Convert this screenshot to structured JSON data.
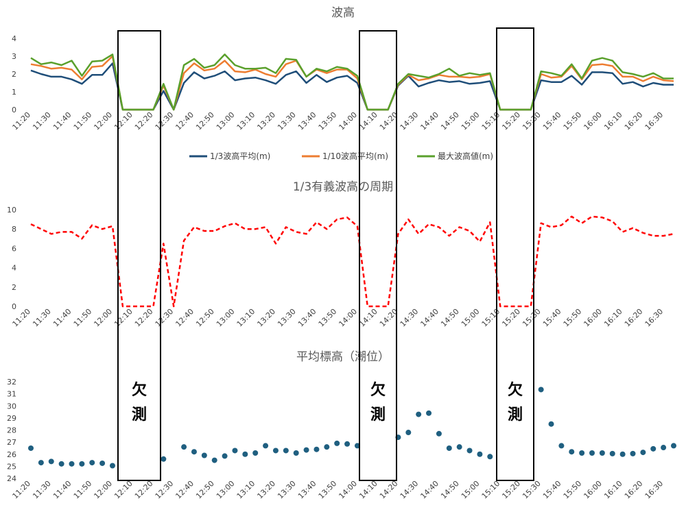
{
  "chart_data": [
    {
      "type": "line",
      "title": "波高",
      "x": [
        "11:20",
        "11:25",
        "11:30",
        "11:35",
        "11:40",
        "11:45",
        "11:50",
        "11:55",
        "12:00",
        "12:05",
        "12:10",
        "12:15",
        "12:20",
        "12:25",
        "12:30",
        "12:35",
        "12:40",
        "12:45",
        "12:50",
        "12:55",
        "13:00",
        "13:05",
        "13:10",
        "13:15",
        "13:20",
        "13:25",
        "13:30",
        "13:35",
        "13:40",
        "13:45",
        "13:50",
        "13:55",
        "14:00",
        "14:05",
        "14:10",
        "14:15",
        "14:20",
        "14:25",
        "14:30",
        "14:35",
        "14:40",
        "14:45",
        "14:50",
        "14:55",
        "15:00",
        "15:05",
        "15:10",
        "15:15",
        "15:20",
        "15:25",
        "15:30",
        "15:35",
        "15:40",
        "15:45",
        "15:50",
        "15:55",
        "16:00",
        "16:05",
        "16:10",
        "16:15",
        "16:20",
        "16:25",
        "16:30",
        "16:35"
      ],
      "x_tick_labels": [
        "11:20",
        "11:30",
        "11:40",
        "11:50",
        "12:00",
        "12:10",
        "12:20",
        "12:30",
        "12:40",
        "12:50",
        "13:00",
        "13:10",
        "13:20",
        "13:30",
        "13:40",
        "13:50",
        "14:00",
        "14:10",
        "14:20",
        "14:30",
        "14:40",
        "14:50",
        "15:00",
        "15:10",
        "15:20",
        "15:30",
        "15:40",
        "15:50",
        "16:00",
        "16:10",
        "16:20",
        "16:30"
      ],
      "y_ticks": [
        0,
        1,
        2,
        3,
        4
      ],
      "ylim": [
        0,
        4
      ],
      "legend_position": "bottom",
      "series": [
        {
          "name": "1/3波高平均(m)",
          "color": "#1f4e79",
          "values": [
            2.2,
            2.0,
            1.85,
            1.85,
            1.7,
            1.45,
            1.95,
            1.95,
            2.6,
            0,
            0,
            0,
            0,
            1.05,
            0,
            1.5,
            2.1,
            1.75,
            1.9,
            2.15,
            1.65,
            1.75,
            1.8,
            1.65,
            1.45,
            1.95,
            2.15,
            1.5,
            1.95,
            1.55,
            1.8,
            1.9,
            1.5,
            0,
            0,
            0,
            1.35,
            1.9,
            1.3,
            1.5,
            1.65,
            1.55,
            1.6,
            1.45,
            1.5,
            1.6,
            0,
            0,
            0,
            0,
            1.65,
            1.55,
            1.55,
            1.9,
            1.4,
            2.1,
            2.1,
            2.05,
            1.45,
            1.55,
            1.3,
            1.5,
            1.4,
            1.4
          ]
        },
        {
          "name": "1/10波高平均(m)",
          "color": "#ed7d31",
          "values": [
            2.55,
            2.45,
            2.3,
            2.35,
            2.25,
            1.7,
            2.4,
            2.45,
            3.0,
            0,
            0,
            0,
            0,
            1.35,
            0,
            2.05,
            2.6,
            2.2,
            2.3,
            2.75,
            2.15,
            2.1,
            2.25,
            2.0,
            1.85,
            2.55,
            2.75,
            1.85,
            2.25,
            2.05,
            2.25,
            2.25,
            1.75,
            0,
            0,
            0,
            1.4,
            1.95,
            1.65,
            1.75,
            1.95,
            1.85,
            1.85,
            1.8,
            1.85,
            2.0,
            0,
            0,
            0,
            0,
            2.0,
            1.8,
            1.85,
            2.45,
            1.7,
            2.5,
            2.55,
            2.45,
            1.85,
            1.85,
            1.6,
            1.85,
            1.65,
            1.6
          ]
        },
        {
          "name": "最大波高値(m)",
          "color": "#5aa02c",
          "values": [
            2.9,
            2.55,
            2.65,
            2.5,
            2.75,
            1.9,
            2.7,
            2.75,
            3.1,
            0,
            0,
            0,
            0,
            1.45,
            0,
            2.5,
            2.85,
            2.35,
            2.5,
            3.1,
            2.5,
            2.3,
            2.3,
            2.35,
            2.05,
            2.85,
            2.8,
            1.85,
            2.3,
            2.15,
            2.4,
            2.3,
            1.9,
            0,
            0,
            0,
            1.45,
            2.0,
            1.9,
            1.8,
            2.0,
            2.3,
            1.9,
            2.05,
            1.95,
            2.05,
            0,
            0,
            0,
            0,
            2.15,
            2.05,
            1.9,
            2.55,
            1.75,
            2.75,
            2.9,
            2.75,
            2.1,
            2.0,
            1.85,
            2.05,
            1.75,
            1.75
          ]
        }
      ]
    },
    {
      "type": "line",
      "title": "1/3有義波高の周期",
      "x_tick_labels": [
        "11:20",
        "11:30",
        "11:40",
        "11:50",
        "12:00",
        "12:10",
        "12:20",
        "12:30",
        "12:40",
        "12:50",
        "13:00",
        "13:10",
        "13:20",
        "13:30",
        "13:40",
        "13:50",
        "14:00",
        "14:10",
        "14:20",
        "14:30",
        "14:40",
        "14:50",
        "15:00",
        "15:10",
        "15:20",
        "15:30",
        "15:40",
        "15:50",
        "16:00",
        "16:10",
        "16:20",
        "16:30"
      ],
      "y_ticks": [
        0,
        2,
        4,
        6,
        8,
        10
      ],
      "ylim": [
        0,
        10
      ],
      "series": [
        {
          "color": "#ff0000",
          "line_style": "dashed",
          "values": [
            8.5,
            8.0,
            7.5,
            7.7,
            7.7,
            7.0,
            8.4,
            8.0,
            8.3,
            0,
            0,
            0,
            0,
            6.5,
            0,
            6.8,
            8.2,
            7.8,
            7.8,
            8.3,
            8.6,
            8.0,
            8.0,
            8.2,
            6.5,
            8.2,
            7.7,
            7.5,
            8.7,
            8.0,
            9.0,
            9.2,
            8.3,
            0,
            0,
            0,
            7.5,
            9.0,
            7.5,
            8.5,
            8.2,
            7.3,
            8.2,
            7.8,
            6.7,
            8.7,
            0,
            0,
            0,
            0,
            8.6,
            8.2,
            8.4,
            9.3,
            8.6,
            9.3,
            9.2,
            8.8,
            7.7,
            8.1,
            7.6,
            7.3,
            7.3,
            7.5
          ]
        }
      ]
    },
    {
      "type": "scatter",
      "title": "平均標高（潮位）",
      "x_tick_labels": [
        "11:20",
        "11:30",
        "11:40",
        "11:50",
        "12:00",
        "12:10",
        "12:20",
        "12:30",
        "12:40",
        "12:50",
        "13:00",
        "13:10",
        "13:20",
        "13:30",
        "13:40",
        "13:50",
        "14:00",
        "14:10",
        "14:20",
        "14:30",
        "14:40",
        "14:50",
        "15:00",
        "15:10",
        "15:20",
        "15:30",
        "15:40",
        "15:50",
        "16:00",
        "16:10",
        "16:20",
        "16:30"
      ],
      "y_ticks": [
        24,
        25,
        26,
        27,
        28,
        29,
        30,
        31,
        32
      ],
      "ylim": [
        24,
        32
      ],
      "series": [
        {
          "color": "#1f5f80",
          "values": [
            26.5,
            25.3,
            25.4,
            25.2,
            25.2,
            25.2,
            25.3,
            25.25,
            25.05,
            null,
            null,
            null,
            null,
            25.6,
            null,
            26.6,
            26.2,
            25.9,
            25.5,
            25.85,
            26.3,
            26.0,
            26.1,
            26.7,
            26.3,
            26.3,
            26.1,
            26.35,
            26.4,
            26.6,
            26.9,
            26.85,
            26.7,
            null,
            null,
            null,
            27.4,
            27.8,
            29.3,
            29.4,
            27.7,
            26.5,
            26.6,
            26.3,
            26.0,
            25.8,
            null,
            null,
            null,
            null,
            31.35,
            28.5,
            26.7,
            26.2,
            26.1,
            26.1,
            26.1,
            26.05,
            26.0,
            26.05,
            26.15,
            26.45,
            26.55,
            26.7
          ]
        }
      ]
    }
  ],
  "missing_label": "欠測"
}
